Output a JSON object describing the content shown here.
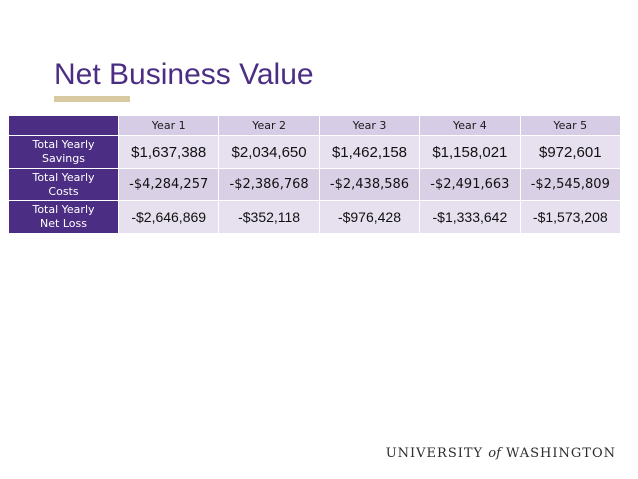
{
  "slide": {
    "title": "Net Business Value"
  },
  "table": {
    "columns": [
      "Year 1",
      "Year 2",
      "Year 3",
      "Year 4",
      "Year 5"
    ],
    "rows": [
      {
        "label_line1": "Total Yearly",
        "label_line2": "Savings",
        "values": [
          "$1,637,388",
          "$2,034,650",
          "$1,462,158",
          "$1,158,021",
          "$972,601"
        ]
      },
      {
        "label_line1": "Total Yearly",
        "label_line2": "Costs",
        "values": [
          "-$4,284,257",
          "-$2,386,768",
          "-$2,438,586",
          "-$2,491,663",
          "-$2,545,809"
        ]
      },
      {
        "label_line1": "Total Yearly",
        "label_line2": "Net Loss",
        "values": [
          "-$2,646,869",
          "-$352,118",
          "-$976,428",
          "-$1,333,642",
          "-$1,573,208"
        ]
      }
    ]
  },
  "footer": {
    "logo_part1": "UNIVERSITY",
    "logo_part2": "of",
    "logo_part3": "WASHINGTON"
  },
  "colors": {
    "brand_purple": "#4b2e83",
    "brand_gold": "#d7c9a0"
  }
}
